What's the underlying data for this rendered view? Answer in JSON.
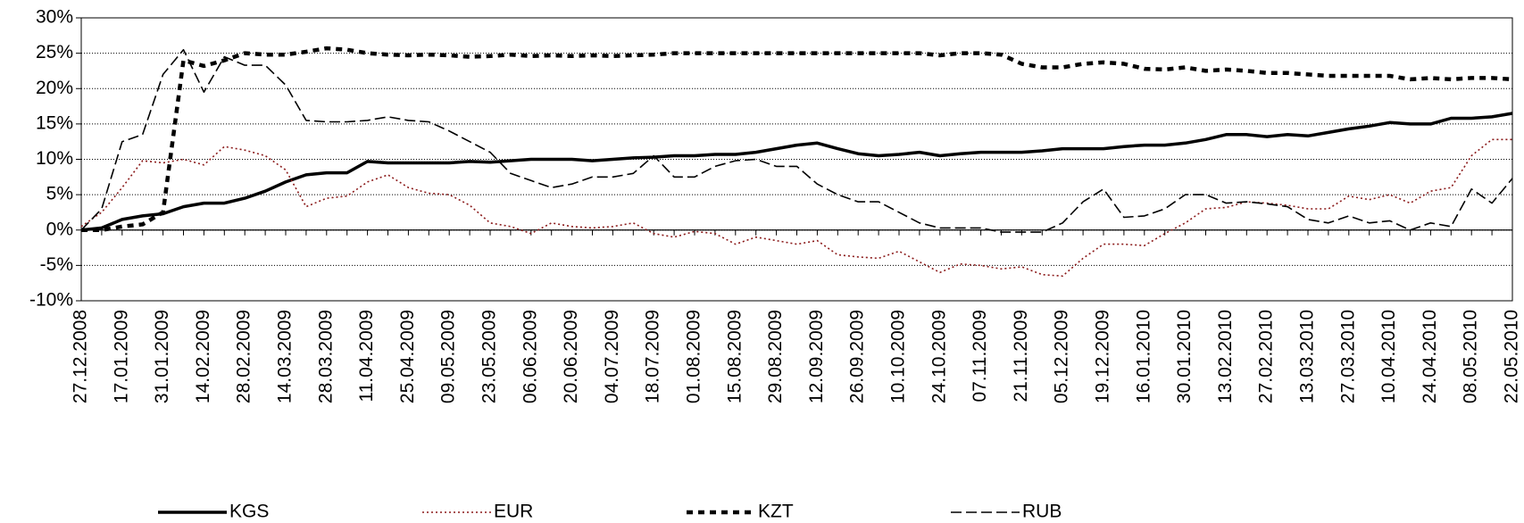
{
  "chart_data": {
    "type": "line",
    "categories": [
      "27.12.2008",
      null,
      "17.01.2009",
      null,
      "31.01.2009",
      null,
      "14.02.2009",
      null,
      "28.02.2009",
      null,
      "14.03.2009",
      null,
      "28.03.2009",
      null,
      "11.04.2009",
      null,
      "25.04.2009",
      null,
      "09.05.2009",
      null,
      "23.05.2009",
      null,
      "06.06.2009",
      null,
      "20.06.2009",
      null,
      "04.07.2009",
      null,
      "18.07.2009",
      null,
      "01.08.2009",
      null,
      "15.08.2009",
      null,
      "29.08.2009",
      null,
      "12.09.2009",
      null,
      "26.09.2009",
      null,
      "10.10.2009",
      null,
      "24.10.2009",
      null,
      "07.11.2009",
      null,
      "21.11.2009",
      null,
      "05.12.2009",
      null,
      "19.12.2009",
      null,
      "16.01.2010",
      null,
      "30.01.2010",
      null,
      "13.02.2010",
      null,
      "27.02.2010",
      null,
      "13.03.2010",
      null,
      "27.03.2010",
      null,
      "10.04.2010",
      null,
      "24.04.2010",
      null,
      "08.05.2010",
      null,
      "22.05.2010"
    ],
    "series": [
      {
        "name": "KGS",
        "color": "#000000",
        "line_style": "solid",
        "values": [
          0,
          0.3,
          1.5,
          2,
          2.3,
          3.3,
          3.8,
          3.8,
          4.5,
          5.5,
          6.8,
          7.8,
          8.1,
          8.1,
          9.7,
          9.5,
          9.5,
          9.5,
          9.5,
          9.7,
          9.6,
          9.8,
          10,
          10,
          10,
          9.8,
          10,
          10.2,
          10.3,
          10.5,
          10.5,
          10.7,
          10.7,
          11,
          11.5,
          12,
          12.3,
          11.5,
          10.8,
          10.5,
          10.7,
          11,
          10.5,
          10.8,
          11,
          11,
          11,
          11.2,
          11.5,
          11.5,
          11.5,
          11.8,
          12,
          12,
          12.3,
          12.8,
          13.5,
          13.5,
          13.2,
          13.5,
          13.3,
          13.8,
          14.3,
          14.7,
          15.2,
          15,
          15,
          15.8,
          15.8,
          16,
          16.5
        ]
      },
      {
        "name": "EUR",
        "color": "#8b1a1a",
        "line_style": "dotted",
        "values": [
          0.5,
          2.5,
          6,
          9.8,
          9.5,
          10,
          9.2,
          11.8,
          11.3,
          10.5,
          8.5,
          3.3,
          4.5,
          4.8,
          6.8,
          7.8,
          6,
          5.2,
          5,
          3.5,
          1,
          0.5,
          -0.5,
          1,
          0.5,
          0.3,
          0.5,
          1,
          -0.5,
          -1,
          -0.2,
          -0.5,
          -2,
          -1,
          -1.5,
          -2,
          -1.5,
          -3.5,
          -3.8,
          -4,
          -3,
          -4.5,
          -6,
          -4.8,
          -5,
          -5.5,
          -5.2,
          -6.3,
          -6.5,
          -4,
          -2,
          -2,
          -2.2,
          -0.5,
          1,
          3,
          3.2,
          4,
          3.8,
          3.5,
          3,
          3,
          4.8,
          4.3,
          5,
          3.8,
          5.5,
          6,
          10.5,
          12.8,
          12.8
        ]
      },
      {
        "name": "KZT",
        "color": "#000000",
        "line_style": "dashed",
        "values": [
          0,
          0,
          0.5,
          0.8,
          2.5,
          24,
          23.2,
          24,
          25,
          24.8,
          24.8,
          25.2,
          25.7,
          25.5,
          25,
          24.8,
          24.7,
          24.8,
          24.7,
          24.5,
          24.6,
          24.8,
          24.6,
          24.7,
          24.6,
          24.7,
          24.6,
          24.7,
          24.8,
          25,
          25,
          25,
          25,
          25,
          25,
          25,
          25,
          25,
          25,
          25,
          25,
          25,
          24.7,
          25,
          25,
          24.8,
          23.5,
          23,
          23,
          23.5,
          23.7,
          23.5,
          22.8,
          22.7,
          23,
          22.5,
          22.7,
          22.5,
          22.2,
          22.2,
          22,
          21.8,
          21.8,
          21.8,
          21.8,
          21.3,
          21.5,
          21.3,
          21.5,
          21.5,
          21.3
        ]
      },
      {
        "name": "RUB",
        "color": "#000000",
        "line_style": "long-dashed",
        "values": [
          0,
          3,
          12.5,
          13.5,
          22,
          25.5,
          19.5,
          24.5,
          23.3,
          23.3,
          20.5,
          15.5,
          15.3,
          15.3,
          15.5,
          16,
          15.5,
          15.3,
          14,
          12.5,
          11,
          8,
          7,
          6,
          6.5,
          7.5,
          7.5,
          8,
          10.5,
          7.5,
          7.5,
          9,
          9.8,
          10,
          9,
          9,
          6.5,
          5,
          4,
          4,
          2.5,
          1,
          0.3,
          0.3,
          0.3,
          -0.3,
          -0.3,
          -0.3,
          1,
          4,
          5.8,
          1.8,
          2,
          3,
          5,
          5,
          3.8,
          4,
          3.7,
          3.3,
          1.5,
          1,
          2,
          1,
          1.3,
          0,
          1,
          0.5,
          5.8,
          3.8,
          7.3
        ]
      }
    ],
    "ylim": [
      -10,
      30
    ],
    "yticks": [
      {
        "value": -10,
        "label": "-10%"
      },
      {
        "value": -5,
        "label": "-5%"
      },
      {
        "value": 0,
        "label": "0%"
      },
      {
        "value": 5,
        "label": "5%"
      },
      {
        "value": 10,
        "label": "10%"
      },
      {
        "value": 15,
        "label": "15%"
      },
      {
        "value": 20,
        "label": "20%"
      },
      {
        "value": 25,
        "label": "25%"
      },
      {
        "value": 30,
        "label": "30%"
      }
    ],
    "grid": true,
    "legend": "bottom"
  }
}
